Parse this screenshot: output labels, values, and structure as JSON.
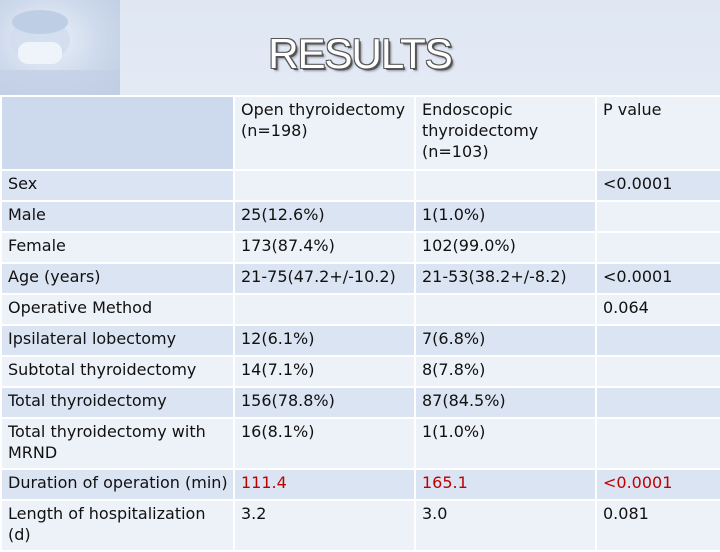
{
  "title": "RESULTS",
  "columns": [
    "Open thyroidectomy (n=198)",
    "Endoscopic thyroidectomy (n=103)",
    "P value"
  ],
  "rows": [
    {
      "label": "Sex",
      "open": "",
      "endo": "",
      "p": "<0.0001"
    },
    {
      "label": "Male",
      "open": "25(12.6%)",
      "endo": "1(1.0%)",
      "p": ""
    },
    {
      "label": "Female",
      "open": "173(87.4%)",
      "endo": "102(99.0%)",
      "p": ""
    },
    {
      "label": "Age (years)",
      "open": "21-75(47.2+/-10.2)",
      "endo": "21-53(38.2+/-8.2)",
      "p": "<0.0001"
    },
    {
      "label": "Operative Method",
      "open": "",
      "endo": "",
      "p": "0.064"
    },
    {
      "label": "Ipsilateral lobectomy",
      "open": "12(6.1%)",
      "endo": "7(6.8%)",
      "p": ""
    },
    {
      "label": "Subtotal thyroidectomy",
      "open": "14(7.1%)",
      "endo": "8(7.8%)",
      "p": ""
    },
    {
      "label": "Total thyroidectomy",
      "open": "156(78.8%)",
      "endo": "87(84.5%)",
      "p": ""
    },
    {
      "label": "Total thyroidectomy with MRND",
      "open": "16(8.1%)",
      "endo": "1(1.0%)",
      "p": ""
    },
    {
      "label": "Duration of operation (min)",
      "open": "111.4",
      "endo": "165.1",
      "p": "<0.0001"
    },
    {
      "label": "Length of hospitalization (d)",
      "open": "3.2",
      "endo": "3.0",
      "p": "0.081"
    }
  ],
  "colors": {
    "highlight": "#c00000",
    "cell_dark": "#dbe4f2",
    "cell_light": "#edf1f8"
  }
}
